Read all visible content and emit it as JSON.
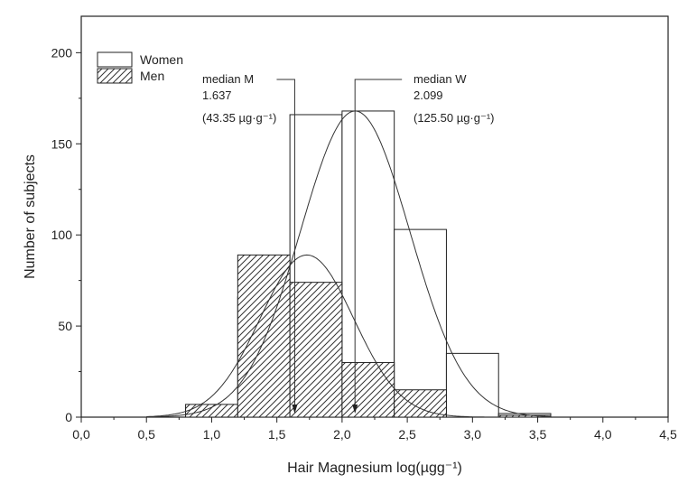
{
  "chart_data": {
    "type": "bar",
    "xlabel": "Hair Magnesium log(µgg⁻¹)",
    "ylabel": "Number of subjects",
    "xlim": [
      0,
      4.5
    ],
    "ylim": [
      0,
      220
    ],
    "xticks": [
      "0,0",
      "0,5",
      "1,0",
      "1,5",
      "2,0",
      "2,5",
      "3,0",
      "3,5",
      "4,0",
      "4,5"
    ],
    "yticks": [
      "0",
      "50",
      "100",
      "150",
      "200"
    ],
    "bin_edges": [
      0.8,
      1.2,
      1.6,
      2.0,
      2.4,
      2.8,
      3.2,
      3.6
    ],
    "series": [
      {
        "name": "Women",
        "values": [
          5,
          66,
          166,
          168,
          103,
          35,
          2
        ]
      },
      {
        "name": "Men",
        "values": [
          7,
          89,
          74,
          30,
          15,
          0,
          1
        ]
      }
    ],
    "fits": [
      {
        "series": "Women",
        "mean": 2.1,
        "sd": 0.42,
        "peak": 168
      },
      {
        "series": "Men",
        "mean": 1.73,
        "sd": 0.36,
        "peak": 89
      }
    ],
    "annotations": [
      {
        "label": "median M",
        "value": "1.637",
        "ug": "(43.35 µg·g⁻¹)",
        "x": 1.637
      },
      {
        "label": "median W",
        "value": "2.099",
        "ug": "(125.50 µg·g⁻¹)",
        "x": 2.099
      }
    ],
    "legend_placement": "top-left",
    "grid": false
  }
}
